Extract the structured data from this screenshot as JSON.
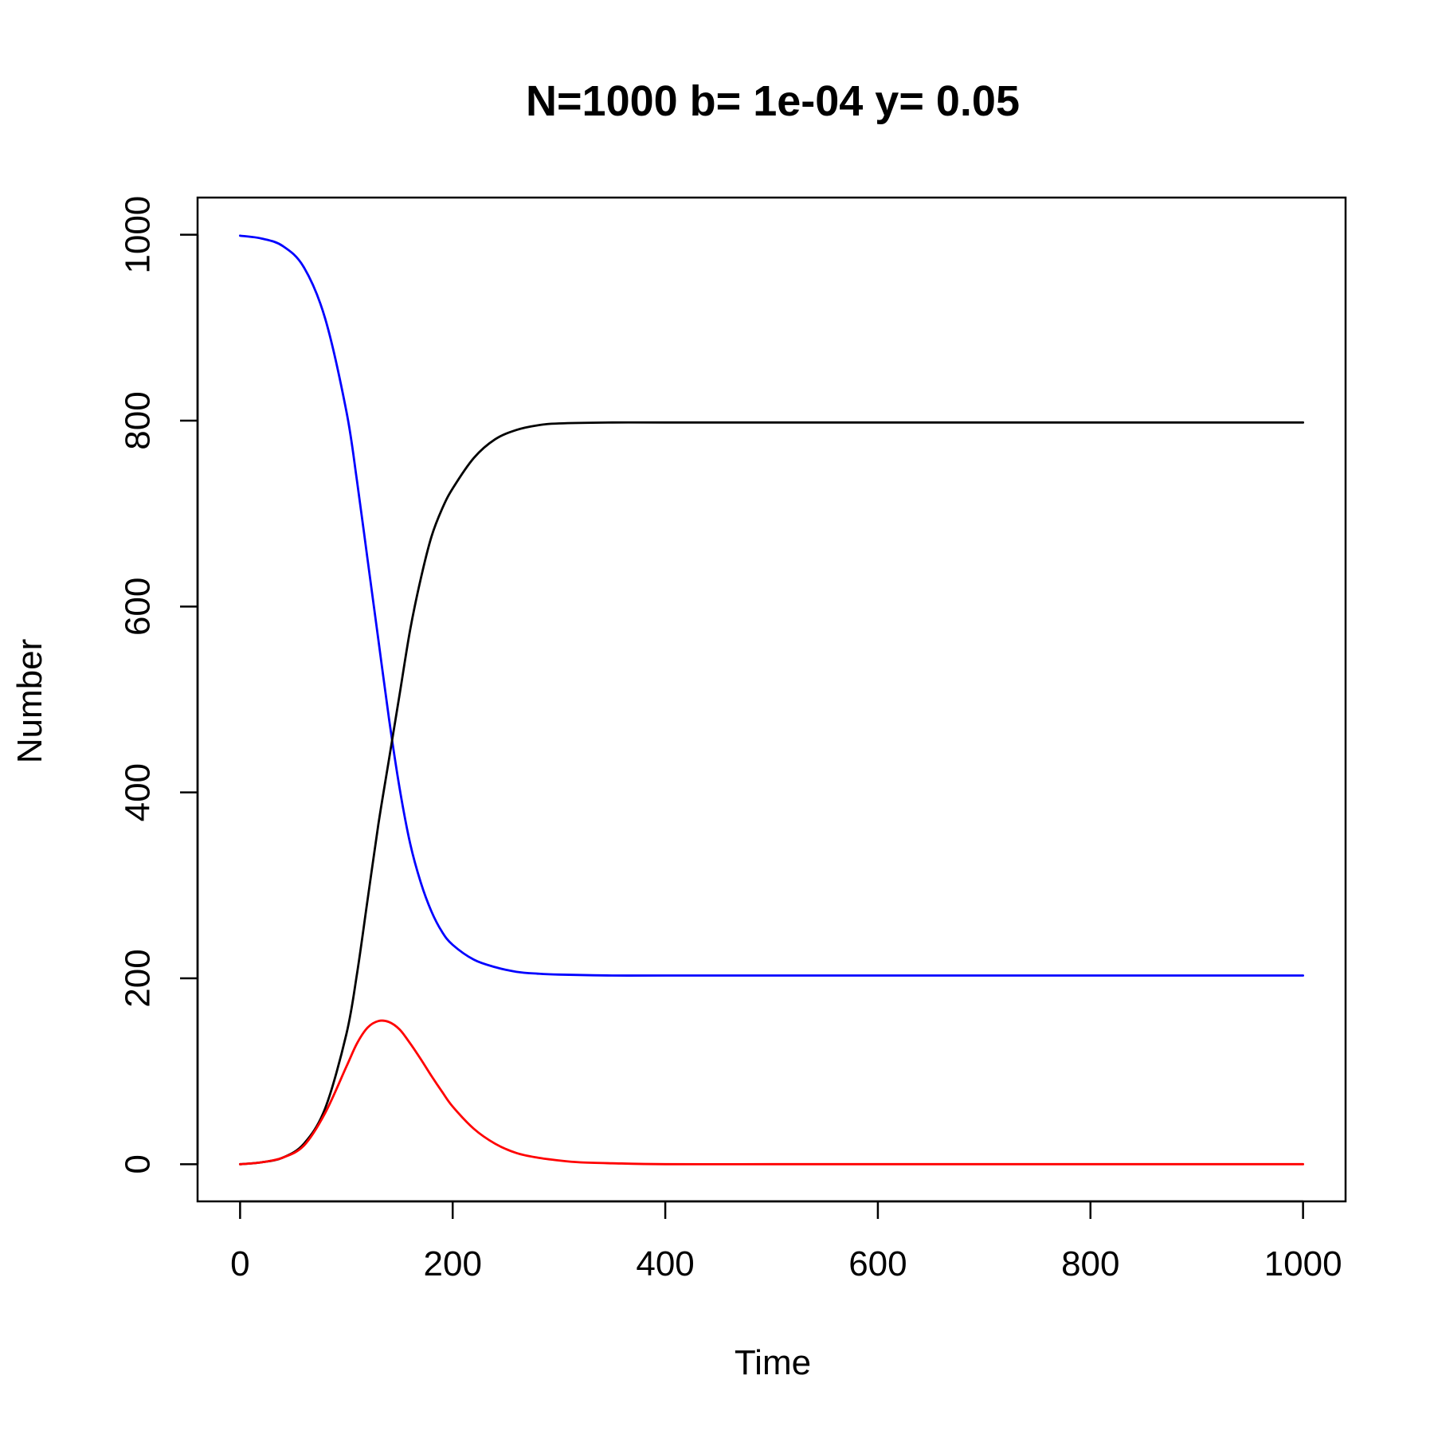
{
  "chart_data": {
    "type": "line",
    "title": "N=1000 b= 1e-04 y= 0.05",
    "xlabel": "Time",
    "ylabel": "Number",
    "xlim": [
      -40,
      1040
    ],
    "ylim": [
      -40,
      1040
    ],
    "x_ticks": [
      0,
      200,
      400,
      600,
      800,
      1000
    ],
    "y_ticks": [
      0,
      200,
      400,
      600,
      800,
      1000
    ],
    "grid": false,
    "legend": "none",
    "series": [
      {
        "color": "#0000ff",
        "points": [
          [
            0,
            999
          ],
          [
            20,
            996
          ],
          [
            40,
            988
          ],
          [
            60,
            965
          ],
          [
            80,
            910
          ],
          [
            100,
            810
          ],
          [
            110,
            735
          ],
          [
            120,
            650
          ],
          [
            130,
            565
          ],
          [
            140,
            480
          ],
          [
            150,
            405
          ],
          [
            160,
            345
          ],
          [
            170,
            303
          ],
          [
            180,
            272
          ],
          [
            190,
            250
          ],
          [
            200,
            236
          ],
          [
            220,
            220
          ],
          [
            240,
            212
          ],
          [
            260,
            207
          ],
          [
            280,
            205
          ],
          [
            300,
            204
          ],
          [
            350,
            203
          ],
          [
            400,
            203
          ],
          [
            500,
            203
          ],
          [
            600,
            203
          ],
          [
            700,
            203
          ],
          [
            800,
            203
          ],
          [
            900,
            203
          ],
          [
            1000,
            203
          ]
        ]
      },
      {
        "color": "#000000",
        "points": [
          [
            0,
            0
          ],
          [
            20,
            2
          ],
          [
            40,
            7
          ],
          [
            60,
            22
          ],
          [
            80,
            60
          ],
          [
            100,
            140
          ],
          [
            110,
            205
          ],
          [
            120,
            285
          ],
          [
            130,
            365
          ],
          [
            140,
            435
          ],
          [
            150,
            505
          ],
          [
            160,
            575
          ],
          [
            170,
            630
          ],
          [
            180,
            675
          ],
          [
            190,
            705
          ],
          [
            200,
            727
          ],
          [
            220,
            760
          ],
          [
            240,
            780
          ],
          [
            260,
            790
          ],
          [
            280,
            795
          ],
          [
            300,
            797
          ],
          [
            350,
            798
          ],
          [
            400,
            798
          ],
          [
            500,
            798
          ],
          [
            600,
            798
          ],
          [
            700,
            798
          ],
          [
            800,
            798
          ],
          [
            900,
            798
          ],
          [
            1000,
            798
          ]
        ]
      },
      {
        "color": "#ff0000",
        "points": [
          [
            0,
            0
          ],
          [
            20,
            2
          ],
          [
            40,
            7
          ],
          [
            60,
            20
          ],
          [
            80,
            55
          ],
          [
            100,
            105
          ],
          [
            110,
            130
          ],
          [
            120,
            147
          ],
          [
            130,
            154
          ],
          [
            140,
            153
          ],
          [
            150,
            145
          ],
          [
            160,
            130
          ],
          [
            170,
            113
          ],
          [
            180,
            95
          ],
          [
            190,
            78
          ],
          [
            200,
            62
          ],
          [
            220,
            38
          ],
          [
            240,
            22
          ],
          [
            260,
            12
          ],
          [
            280,
            7
          ],
          [
            300,
            4
          ],
          [
            320,
            2
          ],
          [
            350,
            1
          ],
          [
            400,
            0
          ],
          [
            500,
            0
          ],
          [
            600,
            0
          ],
          [
            700,
            0
          ],
          [
            800,
            0
          ],
          [
            900,
            0
          ],
          [
            1000,
            0
          ]
        ]
      }
    ]
  }
}
